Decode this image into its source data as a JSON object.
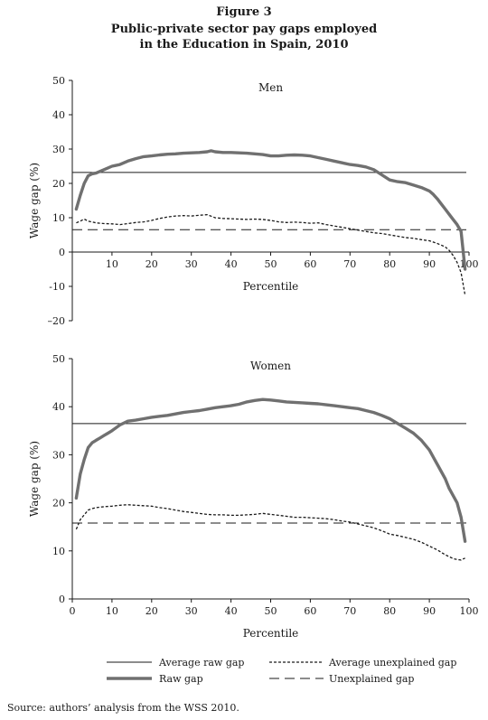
{
  "figure": {
    "label": "Figure 3",
    "title_line1": "Public-private sector pay gaps employed",
    "title_line2": "in the Education in Spain, 2010",
    "source": "Source: authors’ analysis from the WSS 2010."
  },
  "legend": {
    "average_raw": "Average raw gap",
    "average_unexplained": "Average unexplained gap",
    "raw": "Raw gap",
    "unexplained": "Unexplained gap"
  },
  "colors": {
    "raw": "#707070",
    "lines": "#1a1a1a"
  },
  "chart_data": [
    {
      "type": "line",
      "panel_label": "Men",
      "xlabel": "Percentile",
      "ylabel": "Wage gap (%)",
      "xlim": [
        0,
        100
      ],
      "ylim": [
        -20,
        50
      ],
      "xticks": [
        "10",
        "20",
        "30",
        "40",
        "50",
        "60",
        "70",
        "80",
        "90",
        "100"
      ],
      "yticks": [
        "50",
        "40",
        "30",
        "20",
        "10",
        "0",
        "-10",
        "–20"
      ],
      "series": [
        {
          "name": "Raw gap",
          "x": [
            1,
            2,
            3,
            4,
            5,
            6,
            8,
            10,
            12,
            14,
            16,
            18,
            20,
            22,
            24,
            26,
            28,
            30,
            32,
            34,
            35,
            36,
            38,
            40,
            42,
            44,
            46,
            48,
            50,
            52,
            54,
            56,
            58,
            60,
            62,
            64,
            66,
            68,
            70,
            72,
            74,
            76,
            78,
            80,
            82,
            84,
            86,
            88,
            90,
            91,
            92,
            93,
            94,
            95,
            96,
            97,
            98,
            99
          ],
          "y": [
            12.5,
            16.5,
            20,
            22.2,
            22.8,
            23,
            24,
            25,
            25.5,
            26.5,
            27.2,
            27.8,
            28,
            28.3,
            28.5,
            28.6,
            28.8,
            28.9,
            29,
            29.2,
            29.5,
            29.2,
            29,
            29,
            28.9,
            28.8,
            28.6,
            28.4,
            28,
            28,
            28.2,
            28.3,
            28.2,
            28,
            27.5,
            27,
            26.5,
            26,
            25.5,
            25.2,
            24.8,
            24,
            22.5,
            21,
            20.5,
            20.2,
            19.5,
            18.8,
            17.8,
            16.8,
            15.5,
            14,
            12.5,
            11,
            9.5,
            8,
            6,
            -5
          ]
        },
        {
          "name": "Unexplained gap",
          "x": [
            1,
            2,
            3,
            4,
            6,
            8,
            10,
            12,
            14,
            16,
            18,
            20,
            22,
            24,
            26,
            28,
            30,
            32,
            34,
            36,
            38,
            40,
            42,
            44,
            46,
            48,
            50,
            52,
            54,
            56,
            58,
            60,
            62,
            64,
            66,
            68,
            70,
            72,
            74,
            76,
            78,
            80,
            82,
            84,
            86,
            88,
            90,
            92,
            94,
            95,
            96,
            97,
            98,
            99
          ],
          "y": [
            8.5,
            9,
            9.6,
            9,
            8.5,
            8.3,
            8.2,
            8,
            8.3,
            8.6,
            8.8,
            9.2,
            9.8,
            10.2,
            10.5,
            10.6,
            10.5,
            10.7,
            10.9,
            10,
            9.8,
            9.7,
            9.6,
            9.5,
            9.6,
            9.5,
            9.2,
            8.8,
            8.6,
            8.7,
            8.6,
            8.4,
            8.5,
            8,
            7.6,
            7.2,
            6.8,
            6.4,
            6,
            5.6,
            5.4,
            5,
            4.6,
            4.2,
            4,
            3.6,
            3.3,
            2.5,
            1.5,
            0.5,
            -1,
            -3,
            -6,
            -12.5
          ]
        }
      ],
      "averages": {
        "average_raw_gap": 23.2,
        "average_unexplained_gap": 6.5
      }
    },
    {
      "type": "line",
      "panel_label": "Women",
      "xlabel": "Percentile",
      "ylabel": "Wage gap (%)",
      "xlim": [
        0,
        100
      ],
      "ylim": [
        0,
        50
      ],
      "xticks": [
        "0",
        "10",
        "20",
        "30",
        "40",
        "50",
        "60",
        "70",
        "80",
        "90",
        "100"
      ],
      "yticks": [
        "50",
        "40",
        "30",
        "20",
        "10",
        "0"
      ],
      "series": [
        {
          "name": "Raw gap",
          "x": [
            1,
            2,
            3,
            4,
            5,
            6,
            7,
            8,
            9,
            10,
            12,
            14,
            16,
            18,
            20,
            22,
            24,
            26,
            28,
            30,
            32,
            34,
            36,
            38,
            40,
            42,
            44,
            46,
            48,
            50,
            52,
            54,
            56,
            58,
            60,
            62,
            64,
            66,
            68,
            70,
            72,
            74,
            76,
            78,
            80,
            82,
            84,
            86,
            88,
            90,
            91,
            92,
            93,
            94,
            95,
            96,
            97,
            98,
            99
          ],
          "y": [
            21,
            26,
            29,
            31.5,
            32.5,
            33,
            33.5,
            34,
            34.5,
            35,
            36.2,
            37,
            37.2,
            37.5,
            37.8,
            38,
            38.2,
            38.5,
            38.8,
            39,
            39.2,
            39.5,
            39.8,
            40,
            40.2,
            40.5,
            41,
            41.3,
            41.5,
            41.4,
            41.2,
            41,
            40.9,
            40.8,
            40.7,
            40.6,
            40.4,
            40.2,
            40,
            39.8,
            39.6,
            39.2,
            38.8,
            38.2,
            37.5,
            36.5,
            35.5,
            34.5,
            33,
            31,
            29.5,
            28,
            26.5,
            25,
            23,
            21.5,
            20,
            17,
            12
          ]
        },
        {
          "name": "Unexplained gap",
          "x": [
            1,
            2,
            3,
            4,
            5,
            6,
            8,
            10,
            12,
            14,
            16,
            18,
            20,
            22,
            24,
            26,
            28,
            30,
            32,
            34,
            36,
            38,
            40,
            42,
            44,
            46,
            48,
            50,
            52,
            54,
            56,
            58,
            60,
            62,
            64,
            66,
            68,
            70,
            72,
            74,
            76,
            78,
            80,
            82,
            84,
            86,
            88,
            90,
            92,
            94,
            95,
            96,
            97,
            98,
            99
          ],
          "y": [
            14.5,
            16.5,
            17.5,
            18.5,
            18.8,
            19,
            19.2,
            19.3,
            19.5,
            19.6,
            19.5,
            19.4,
            19.3,
            19,
            18.8,
            18.5,
            18.2,
            18,
            17.8,
            17.6,
            17.5,
            17.5,
            17.4,
            17.4,
            17.5,
            17.6,
            17.8,
            17.6,
            17.4,
            17.2,
            17,
            17,
            16.9,
            16.8,
            16.7,
            16.5,
            16.2,
            16,
            15.6,
            15.2,
            14.8,
            14.2,
            13.5,
            13.2,
            12.8,
            12.4,
            11.8,
            11,
            10.2,
            9.2,
            8.8,
            8.4,
            8.2,
            8.1,
            8.5
          ]
        }
      ],
      "averages": {
        "average_raw_gap": 36.5,
        "average_unexplained_gap": 15.8
      }
    }
  ]
}
